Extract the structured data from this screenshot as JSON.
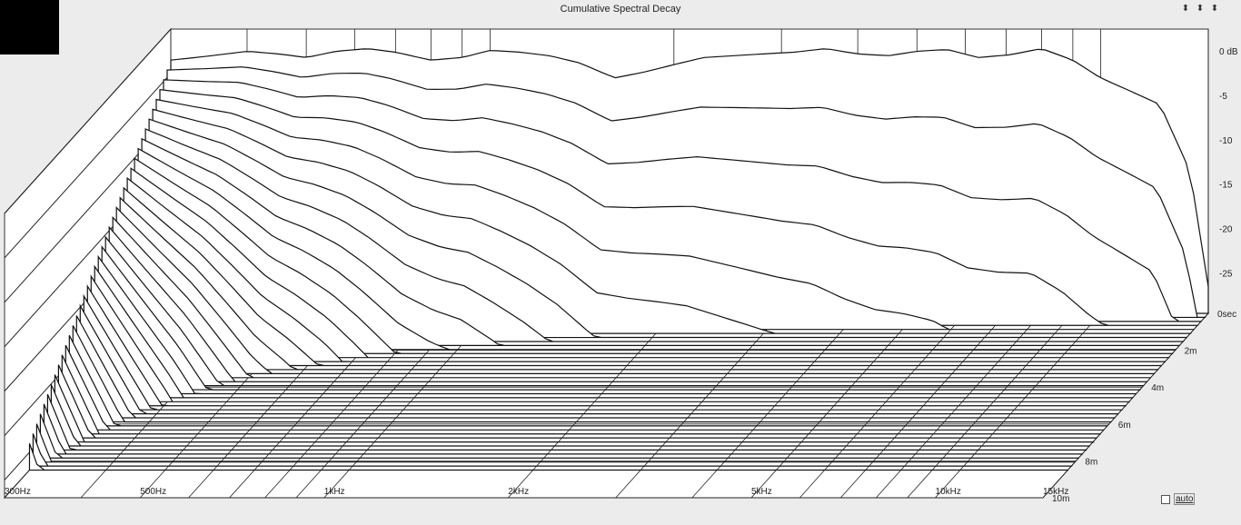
{
  "window": {
    "title": "Cumulative Spectral Decay",
    "nav_icons": [
      "up-arrow-icon",
      "down-arrow-icon",
      "updown-arrow-icon"
    ]
  },
  "controls": {
    "auto_label": "auto",
    "auto_checked": false
  },
  "chart_data": {
    "type": "waterfall",
    "title": "Cumulative Spectral Decay",
    "x_axis": {
      "scale": "log",
      "range_hz": [
        300,
        15000
      ],
      "tick_labels": [
        "300Hz",
        "500Hz",
        "1kHz",
        "2kHz",
        "5kHz",
        "10kHz",
        "15kHz"
      ],
      "tick_values_hz": [
        300,
        500,
        1000,
        2000,
        5000,
        10000,
        15000
      ]
    },
    "z_axis": {
      "range_db": [
        -30,
        0
      ],
      "tick_labels": [
        "0 dB",
        "-5",
        "-10",
        "-15",
        "-20",
        "-25"
      ],
      "tick_values_db": [
        0,
        -5,
        -10,
        -15,
        -20,
        -25
      ]
    },
    "time_axis": {
      "range_ms": [
        0,
        10
      ],
      "tick_labels": [
        "0sec",
        "2m",
        "4m",
        "6m",
        "8m",
        "10m"
      ],
      "tick_values_ms": [
        0,
        2,
        4,
        6,
        8,
        10
      ]
    },
    "grid": true,
    "slice_count": 40,
    "front_response_db": {
      "freq_hz": [
        300,
        350,
        400,
        450,
        500,
        560,
        630,
        700,
        800,
        900,
        1000,
        1120,
        1250,
        1400,
        1600,
        1800,
        2000,
        2240,
        2500,
        2800,
        3150,
        3550,
        4000,
        4500,
        5000,
        5600,
        6300,
        7100,
        8000,
        9000,
        10000,
        11200,
        12500,
        14000,
        15000
      ],
      "level_db": [
        -1.5,
        -1,
        -0.5,
        -0.8,
        -1.2,
        -0.5,
        -0.2,
        -0.6,
        -1.5,
        -1.2,
        -0.4,
        -0.6,
        -1.0,
        -1.8,
        -3.5,
        -2.8,
        -2.0,
        -1.2,
        -1.0,
        -0.8,
        -0.6,
        -0.2,
        -0.8,
        -1.0,
        -0.5,
        -0.3,
        -1.2,
        -0.9,
        -0.2,
        -1.5,
        -3.5,
        -5.0,
        -6.5,
        -14.0,
        -27.0
      ]
    }
  }
}
